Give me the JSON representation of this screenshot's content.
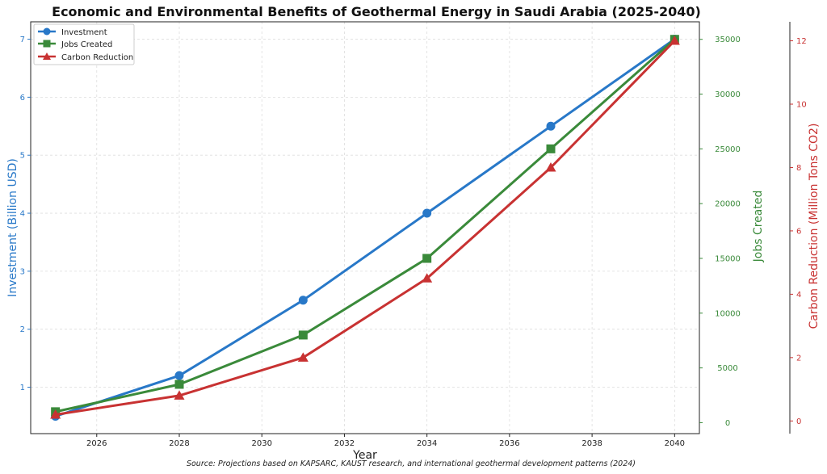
{
  "chart_data": {
    "type": "line",
    "title": "Economic and Environmental Benefits of Geothermal Energy in Saudi Arabia (2025-2040)",
    "xlabel": "Year",
    "x": [
      2025,
      2028,
      2031,
      2034,
      2037,
      2040
    ],
    "xlim": [
      2024.4,
      2040.6
    ],
    "xticks": [
      2026,
      2028,
      2030,
      2032,
      2034,
      2036,
      2038,
      2040
    ],
    "grid": true,
    "legend_position": "top-left",
    "source": "Source: Projections based on KAPSARC, KAUST research, and international geothermal development patterns (2024)",
    "series": [
      {
        "name": "Investment",
        "axis": "left",
        "ylabel": "Investment (Billion USD)",
        "color": "#2878c8",
        "marker": "circle",
        "values": [
          0.5,
          1.2,
          2.5,
          4.0,
          5.5,
          7.0
        ],
        "ylim": [
          0.2,
          7.3
        ],
        "ticks": [
          1,
          2,
          3,
          4,
          5,
          6,
          7
        ]
      },
      {
        "name": "Jobs Created",
        "axis": "right1",
        "ylabel": "Jobs Created",
        "color": "#3a8a3a",
        "marker": "square",
        "values": [
          1000,
          3500,
          8000,
          15000,
          25000,
          35000
        ],
        "ylim": [
          -1000,
          36600
        ],
        "ticks": [
          0,
          5000,
          10000,
          15000,
          20000,
          25000,
          30000,
          35000
        ]
      },
      {
        "name": "Carbon Reduction",
        "axis": "right2",
        "ylabel": "Carbon Reduction (Million Tons CO2)",
        "color": "#c83232",
        "marker": "triangle",
        "values": [
          0.2,
          0.8,
          2.0,
          4.5,
          8.0,
          12.0
        ],
        "ylim": [
          -0.4,
          12.6
        ],
        "ticks": [
          0,
          2,
          4,
          6,
          8,
          10,
          12
        ]
      }
    ]
  }
}
